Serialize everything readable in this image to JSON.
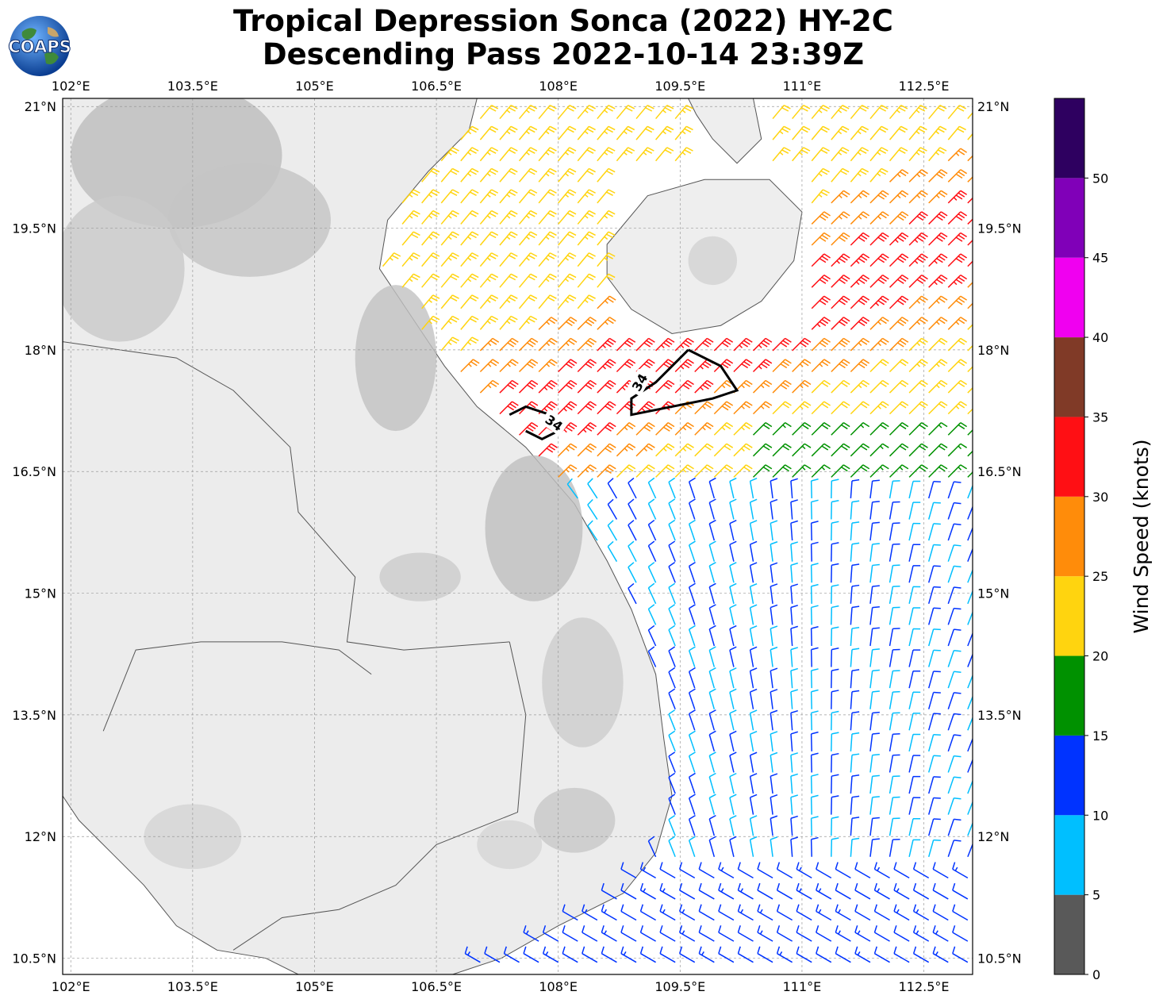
{
  "title": {
    "line1": "Tropical Depression Sonca (2022) HY-2C",
    "line2": "Descending Pass 2022-10-14 23:39Z"
  },
  "logo": {
    "text": "COAPS",
    "icon": "globe-logo-icon"
  },
  "map": {
    "lon_range": [
      101.9,
      113.1
    ],
    "lat_range": [
      10.3,
      21.1
    ],
    "lon_ticks": [
      "102°E",
      "103.5°E",
      "105°E",
      "106.5°E",
      "108°E",
      "109.5°E",
      "111°E",
      "112.5°E"
    ],
    "lat_ticks": [
      "21°N",
      "19.5°N",
      "18°N",
      "16.5°N",
      "15°N",
      "13.5°N",
      "12°N",
      "10.5°N"
    ],
    "contour_label": "34",
    "contour_color": "#000000",
    "land_shading": "grayscale topography",
    "grid": true
  },
  "colorbar": {
    "label": "Wind Speed (knots)",
    "ticks": [
      "0",
      "5",
      "10",
      "15",
      "20",
      "25",
      "30",
      "35",
      "40",
      "45",
      "50"
    ],
    "bins": [
      {
        "min": 0,
        "max": 5,
        "color": "#595959"
      },
      {
        "min": 5,
        "max": 10,
        "color": "#00bfff"
      },
      {
        "min": 10,
        "max": 15,
        "color": "#0033ff"
      },
      {
        "min": 15,
        "max": 20,
        "color": "#009100"
      },
      {
        "min": 20,
        "max": 25,
        "color": "#ffd40f"
      },
      {
        "min": 25,
        "max": 30,
        "color": "#ff8c0a"
      },
      {
        "min": 30,
        "max": 35,
        "color": "#ff0f14"
      },
      {
        "min": 35,
        "max": 40,
        "color": "#803a27"
      },
      {
        "min": 40,
        "max": 45,
        "color": "#f000f0"
      },
      {
        "min": 45,
        "max": 50,
        "color": "#8000b8"
      },
      {
        "min": 50,
        "max": 55,
        "color": "#2e0060"
      }
    ]
  },
  "wind_regions": [
    {
      "name": "gulf-north",
      "speed_kt": 23,
      "dir_deg": 40
    },
    {
      "name": "gulf-core",
      "speed_kt": 32,
      "dir_deg": 45
    },
    {
      "name": "gulf-orange",
      "speed_kt": 27,
      "dir_deg": 45
    },
    {
      "name": "east-yellow",
      "speed_kt": 22,
      "dir_deg": 45
    },
    {
      "name": "east-green",
      "speed_kt": 18,
      "dir_deg": 45
    },
    {
      "name": "offshore-mixed",
      "speed_kt": 10,
      "dir_deg": 345
    },
    {
      "name": "south-blue",
      "speed_kt": 12,
      "dir_deg": 300
    },
    {
      "name": "cambodia-coast",
      "speed_kt": 12,
      "dir_deg": 320
    }
  ]
}
